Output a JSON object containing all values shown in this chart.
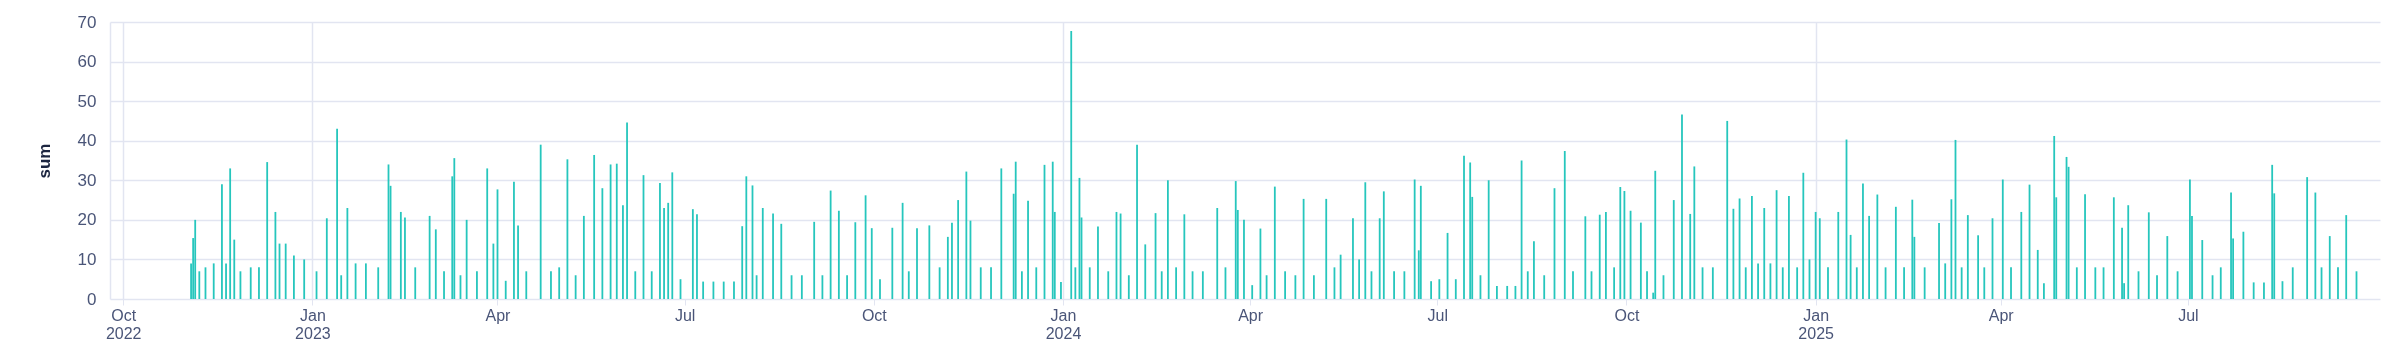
{
  "chart_data": {
    "type": "bar",
    "ylabel": "sum",
    "color": "#26c6bd",
    "grid": true,
    "xlim": [
      "2022-09-27",
      "2025-09-30"
    ],
    "xticks": [
      {
        "value": "2022-10-01",
        "label": "Oct\n2022"
      },
      {
        "value": "2023-01-01",
        "label": "Jan\n2023"
      },
      {
        "value": "2023-04-01",
        "label": "Apr"
      },
      {
        "value": "2023-07-01",
        "label": "Jul"
      },
      {
        "value": "2023-10-01",
        "label": "Oct"
      },
      {
        "value": "2024-01-01",
        "label": "Jan\n2024"
      },
      {
        "value": "2024-04-01",
        "label": "Apr"
      },
      {
        "value": "2024-07-01",
        "label": "Jul"
      },
      {
        "value": "2024-10-01",
        "label": "Oct"
      },
      {
        "value": "2025-01-01",
        "label": "Jan\n2025"
      },
      {
        "value": "2025-04-01",
        "label": "Apr"
      },
      {
        "value": "2025-07-01",
        "label": "Jul"
      }
    ],
    "ylim": [
      0,
      70
    ],
    "yticks": [
      0,
      10,
      20,
      30,
      40,
      50,
      60,
      70
    ],
    "x": [
      "2022-11-03",
      "2022-11-04",
      "2022-11-05",
      "2022-11-07",
      "2022-11-10",
      "2022-11-14",
      "2022-11-18",
      "2022-11-20",
      "2022-11-22",
      "2022-11-24",
      "2022-11-27",
      "2022-12-02",
      "2022-12-06",
      "2022-12-10",
      "2022-12-14",
      "2022-12-16",
      "2022-12-19",
      "2022-12-23",
      "2022-12-28",
      "2023-01-03",
      "2023-01-08",
      "2023-01-13",
      "2023-01-15",
      "2023-01-18",
      "2023-01-22",
      "2023-01-27",
      "2023-02-02",
      "2023-02-07",
      "2023-02-08",
      "2023-02-13",
      "2023-02-15",
      "2023-02-20",
      "2023-02-27",
      "2023-03-02",
      "2023-03-06",
      "2023-03-10",
      "2023-03-11",
      "2023-03-14",
      "2023-03-17",
      "2023-03-22",
      "2023-03-27",
      "2023-03-30",
      "2023-04-01",
      "2023-04-05",
      "2023-04-09",
      "2023-04-11",
      "2023-04-15",
      "2023-04-22",
      "2023-04-27",
      "2023-05-01",
      "2023-05-05",
      "2023-05-09",
      "2023-05-13",
      "2023-05-18",
      "2023-05-22",
      "2023-05-26",
      "2023-05-29",
      "2023-06-01",
      "2023-06-03",
      "2023-06-07",
      "2023-06-11",
      "2023-06-15",
      "2023-06-19",
      "2023-06-21",
      "2023-06-23",
      "2023-06-25",
      "2023-06-29",
      "2023-07-05",
      "2023-07-07",
      "2023-07-10",
      "2023-07-15",
      "2023-07-20",
      "2023-07-25",
      "2023-07-29",
      "2023-07-31",
      "2023-08-03",
      "2023-08-05",
      "2023-08-08",
      "2023-08-13",
      "2023-08-17",
      "2023-08-22",
      "2023-08-27",
      "2023-09-02",
      "2023-09-06",
      "2023-09-10",
      "2023-09-14",
      "2023-09-18",
      "2023-09-22",
      "2023-09-27",
      "2023-09-30",
      "2023-10-04",
      "2023-10-10",
      "2023-10-15",
      "2023-10-18",
      "2023-10-22",
      "2023-10-28",
      "2023-11-02",
      "2023-11-06",
      "2023-11-08",
      "2023-11-11",
      "2023-11-15",
      "2023-11-17",
      "2023-11-22",
      "2023-11-27",
      "2023-12-02",
      "2023-12-08",
      "2023-12-09",
      "2023-12-12",
      "2023-12-15",
      "2023-12-19",
      "2023-12-23",
      "2023-12-27",
      "2023-12-28",
      "2023-12-31",
      "2024-01-05",
      "2024-01-07",
      "2024-01-09",
      "2024-01-10",
      "2024-01-14",
      "2024-01-18",
      "2024-01-23",
      "2024-01-27",
      "2024-01-29",
      "2024-02-02",
      "2024-02-06",
      "2024-02-10",
      "2024-02-15",
      "2024-02-18",
      "2024-02-21",
      "2024-02-25",
      "2024-02-29",
      "2024-03-04",
      "2024-03-09",
      "2024-03-16",
      "2024-03-20",
      "2024-03-25",
      "2024-03-26",
      "2024-03-29",
      "2024-04-02",
      "2024-04-06",
      "2024-04-09",
      "2024-04-13",
      "2024-04-18",
      "2024-04-23",
      "2024-04-27",
      "2024-05-02",
      "2024-05-08",
      "2024-05-12",
      "2024-05-15",
      "2024-05-21",
      "2024-05-24",
      "2024-05-27",
      "2024-05-30",
      "2024-06-03",
      "2024-06-05",
      "2024-06-10",
      "2024-06-15",
      "2024-06-20",
      "2024-06-22",
      "2024-06-23",
      "2024-06-28",
      "2024-07-02",
      "2024-07-06",
      "2024-07-10",
      "2024-07-14",
      "2024-07-17",
      "2024-07-18",
      "2024-07-22",
      "2024-07-26",
      "2024-07-30",
      "2024-08-04",
      "2024-08-08",
      "2024-08-11",
      "2024-08-14",
      "2024-08-17",
      "2024-08-22",
      "2024-08-27",
      "2024-09-01",
      "2024-09-05",
      "2024-09-11",
      "2024-09-14",
      "2024-09-18",
      "2024-09-21",
      "2024-09-25",
      "2024-09-28",
      "2024-09-30",
      "2024-10-03",
      "2024-10-08",
      "2024-10-11",
      "2024-10-14",
      "2024-10-15",
      "2024-10-19",
      "2024-10-24",
      "2024-10-28",
      "2024-11-01",
      "2024-11-03",
      "2024-11-07",
      "2024-11-12",
      "2024-11-19",
      "2024-11-22",
      "2024-11-25",
      "2024-11-28",
      "2024-12-01",
      "2024-12-04",
      "2024-12-07",
      "2024-12-10",
      "2024-12-13",
      "2024-12-16",
      "2024-12-19",
      "2024-12-23",
      "2024-12-26",
      "2024-12-29",
      "2025-01-01",
      "2025-01-03",
      "2025-01-07",
      "2025-01-12",
      "2025-01-16",
      "2025-01-18",
      "2025-01-21",
      "2025-01-24",
      "2025-01-27",
      "2025-01-31",
      "2025-02-04",
      "2025-02-09",
      "2025-02-13",
      "2025-02-17",
      "2025-02-18",
      "2025-02-23",
      "2025-03-02",
      "2025-03-05",
      "2025-03-08",
      "2025-03-10",
      "2025-03-13",
      "2025-03-16",
      "2025-03-21",
      "2025-03-24",
      "2025-03-28",
      "2025-04-02",
      "2025-04-06",
      "2025-04-11",
      "2025-04-15",
      "2025-04-19",
      "2025-04-22",
      "2025-04-27",
      "2025-04-28",
      "2025-05-03",
      "2025-05-04",
      "2025-05-08",
      "2025-05-12",
      "2025-05-17",
      "2025-05-21",
      "2025-05-26",
      "2025-05-30",
      "2025-05-31",
      "2025-06-02",
      "2025-06-07",
      "2025-06-12",
      "2025-06-16",
      "2025-06-21",
      "2025-06-26",
      "2025-07-02",
      "2025-07-03",
      "2025-07-08",
      "2025-07-13",
      "2025-07-17",
      "2025-07-22",
      "2025-07-23",
      "2025-07-28",
      "2025-08-02",
      "2025-08-07",
      "2025-08-11",
      "2025-08-12",
      "2025-08-16",
      "2025-08-21",
      "2025-08-28",
      "2025-09-01",
      "2025-09-04",
      "2025-09-08",
      "2025-09-12",
      "2025-09-16",
      "2025-09-21"
    ],
    "values": [
      9,
      15.4,
      20,
      7,
      8,
      9,
      29,
      9,
      33,
      15,
      7,
      8,
      8,
      34.6,
      22,
      14,
      14,
      11,
      10,
      7,
      20.4,
      43,
      6,
      23,
      9,
      9,
      8,
      34,
      28.6,
      22,
      20.6,
      8,
      21,
      17.6,
      7,
      31,
      35.6,
      6,
      20,
      7,
      33,
      14,
      27.7,
      4.6,
      29.6,
      18.6,
      7,
      39,
      7,
      8,
      35.3,
      6,
      21,
      36.4,
      28,
      34,
      34.2,
      23.7,
      44.6,
      7,
      31.3,
      7,
      29.3,
      23,
      24.3,
      32,
      5,
      22.7,
      21.4,
      4.4,
      4.4,
      4.4,
      4.4,
      18.4,
      31,
      28.7,
      6,
      23,
      21.6,
      19,
      6,
      6,
      19.5,
      6,
      27.4,
      22.3,
      6,
      19.4,
      26.2,
      17.9,
      5,
      18,
      24.3,
      7,
      17.9,
      18.6,
      8,
      15.7,
      19.3,
      25,
      32.2,
      19.8,
      8,
      8,
      33,
      26.6,
      34.7,
      7,
      24.8,
      8,
      33.9,
      34.7,
      22,
      4.3,
      67.7,
      8,
      30.6,
      20.6,
      8,
      18.3,
      7,
      22,
      21.6,
      6,
      39,
      13.8,
      21.7,
      7,
      30,
      8,
      21.4,
      7,
      7,
      23,
      8,
      29.8,
      22.5,
      20,
      3.5,
      17.8,
      6,
      28.4,
      7,
      6,
      25.3,
      6,
      25.3,
      8,
      11.2,
      20.4,
      10,
      29.5,
      7,
      20.4,
      27.2,
      7,
      7,
      30.2,
      12.3,
      28.6,
      4.5,
      5,
      16.7,
      5,
      36.2,
      34.5,
      25.8,
      6,
      30,
      3.3,
      3.3,
      3.3,
      35,
      7,
      14.6,
      6,
      28,
      37.4,
      7,
      20.9,
      7,
      21.3,
      22,
      8,
      28.3,
      27.3,
      22.3,
      19.3,
      7,
      1.6,
      32.4,
      6,
      25,
      46.6,
      21.5,
      33.5,
      8,
      8,
      45,
      22.8,
      25.4,
      8,
      26,
      9,
      23,
      9,
      27.5,
      8,
      26,
      8,
      31.9,
      10,
      22,
      20.4,
      8,
      22,
      40.3,
      16.2,
      8,
      29.2,
      21,
      26.4,
      8,
      23.3,
      8,
      25.1,
      15.7,
      8,
      19.2,
      9,
      25.2,
      40.2,
      8,
      21.2,
      16.1,
      8,
      20.4,
      30.2,
      8,
      22,
      28.9,
      12.4,
      4,
      41.2,
      25.7,
      35.9,
      33.4,
      8,
      26.5,
      8,
      8,
      25.7,
      18,
      4,
      23.7,
      7,
      21.9,
      6,
      15.9,
      7,
      30.2,
      21,
      14.9,
      6,
      8,
      26.9,
      15.3,
      17,
      4.2,
      4.2,
      33.9,
      26.7,
      4.5,
      8,
      30.8,
      26.9,
      8,
      15.9,
      8,
      21.2,
      7
    ]
  }
}
